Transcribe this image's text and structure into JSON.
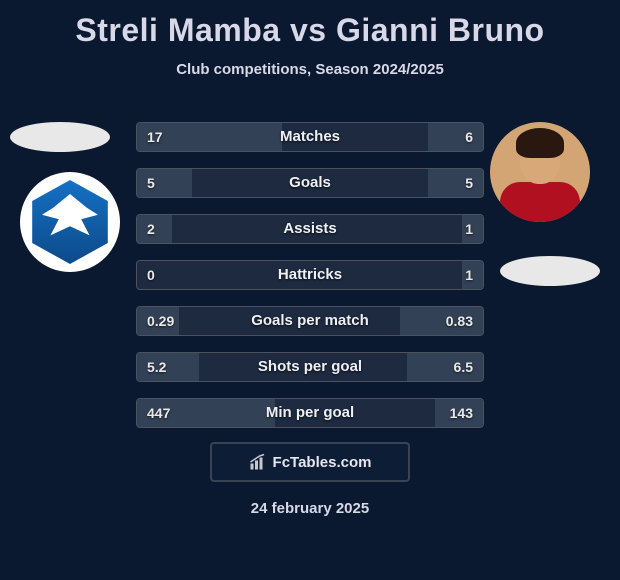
{
  "title": {
    "player1": "Streli Mamba",
    "vs": "vs",
    "player2": "Gianni Bruno",
    "fontsize": 32,
    "color": "#d8d8e8"
  },
  "subtitle": {
    "text": "Club competitions, Season 2024/2025",
    "fontsize": 15,
    "color": "#d8d8e8"
  },
  "background_color": "#0a1930",
  "row_style": {
    "height": 30,
    "gap": 16,
    "border_color": "#4a5264",
    "bg_color": "#1d2a40",
    "fill_color": "#334156",
    "value_fontsize": 14,
    "label_fontsize": 15,
    "text_color": "#eef0f4"
  },
  "rows": [
    {
      "label": "Matches",
      "left": "17",
      "right": "6",
      "left_pct": 42,
      "right_pct": 16
    },
    {
      "label": "Goals",
      "left": "5",
      "right": "5",
      "left_pct": 16,
      "right_pct": 16
    },
    {
      "label": "Assists",
      "left": "2",
      "right": "1",
      "left_pct": 10,
      "right_pct": 6
    },
    {
      "label": "Hattricks",
      "left": "0",
      "right": "1",
      "left_pct": 0,
      "right_pct": 6
    },
    {
      "label": "Goals per match",
      "left": "0.29",
      "right": "0.83",
      "left_pct": 12,
      "right_pct": 24
    },
    {
      "label": "Shots per goal",
      "left": "5.2",
      "right": "6.5",
      "left_pct": 18,
      "right_pct": 22
    },
    {
      "label": "Min per goal",
      "left": "447",
      "right": "143",
      "left_pct": 40,
      "right_pct": 14
    }
  ],
  "footer": {
    "text": "FcTables.com",
    "fontsize": 15,
    "border_color": "#3a4254"
  },
  "date": {
    "text": "24 february 2025",
    "fontsize": 15,
    "color": "#d8d8e8"
  },
  "badge_left": {
    "bg": "#ffffff",
    "shield_gradient_top": "#1570c4",
    "shield_gradient_bottom": "#0d4a8a",
    "eagle_color": "#ffffff"
  }
}
